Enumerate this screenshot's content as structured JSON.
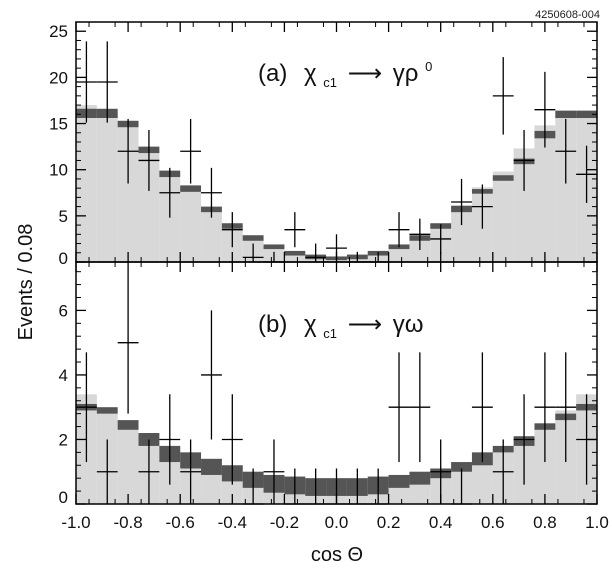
{
  "figure_id": "4250608-004",
  "chart_data": [
    {
      "type": "bar",
      "panel_label": "(a)",
      "process_symbol": "χ",
      "process_subscript": "c1",
      "process_arrow": "⟶",
      "process_final": "γρ",
      "process_final_superscript": "0",
      "xlabel": "cos Θ",
      "ylabel": "Events / 0.08",
      "xlim": [
        -1.0,
        1.0
      ],
      "ylim": [
        0,
        26
      ],
      "y_ticks": [
        0,
        5,
        10,
        15,
        20,
        25
      ],
      "x_ticks": [
        -1.0,
        -0.8,
        -0.6,
        -0.4,
        -0.2,
        0.0,
        0.2,
        0.4,
        0.6,
        0.8,
        1.0
      ],
      "x_tick_labels": [
        "-1.0",
        "-0.8",
        "-0.6",
        "-0.4",
        "-0.2",
        "0.0",
        "0.2",
        "0.4",
        "0.6",
        "0.8",
        "1.0"
      ],
      "bin_edges": [
        -1.0,
        -0.92,
        -0.84,
        -0.76,
        -0.68,
        -0.6,
        -0.52,
        -0.44,
        -0.36,
        -0.28,
        -0.2,
        -0.12,
        -0.04,
        0.04,
        0.12,
        0.2,
        0.28,
        0.36,
        0.44,
        0.52,
        0.6,
        0.68,
        0.76,
        0.84,
        0.92,
        1.0
      ],
      "series": [
        {
          "kind": "light-fill-histogram",
          "color": "#d8d8d8",
          "values": [
            17.0,
            16.2,
            14.8,
            12.3,
            9.8,
            8.1,
            5.9,
            4.0,
            2.8,
            1.9,
            1.2,
            0.8,
            0.6,
            0.8,
            1.2,
            1.9,
            2.8,
            4.0,
            5.9,
            8.1,
            9.8,
            12.3,
            14.8,
            16.2,
            16.0
          ]
        },
        {
          "kind": "dark-band",
          "color": "#555555",
          "low": [
            15.6,
            15.6,
            14.6,
            11.8,
            9.2,
            7.6,
            5.4,
            3.6,
            2.3,
            1.4,
            0.7,
            0.3,
            0.2,
            0.3,
            0.7,
            1.4,
            2.3,
            3.6,
            5.4,
            7.4,
            8.8,
            10.6,
            13.4,
            15.6,
            15.6
          ],
          "high": [
            16.6,
            16.6,
            15.3,
            12.5,
            9.9,
            8.3,
            6.0,
            4.2,
            2.9,
            1.9,
            1.2,
            0.8,
            0.6,
            0.8,
            1.2,
            1.9,
            2.9,
            4.2,
            6.1,
            7.9,
            9.4,
            11.2,
            14.2,
            16.4,
            16.4
          ]
        },
        {
          "kind": "data-points",
          "color": "#000000",
          "x": [
            -0.96,
            -0.88,
            -0.8,
            -0.72,
            -0.64,
            -0.56,
            -0.48,
            -0.4,
            -0.32,
            -0.24,
            -0.16,
            -0.08,
            0.0,
            0.08,
            0.16,
            0.24,
            0.32,
            0.4,
            0.48,
            0.56,
            0.64,
            0.72,
            0.8,
            0.88,
            0.96
          ],
          "y": [
            19.5,
            19.5,
            12.0,
            11.0,
            7.5,
            12.0,
            7.5,
            3.5,
            0.5,
            0.0,
            3.5,
            0.5,
            1.5,
            0.0,
            0.0,
            3.5,
            3.0,
            2.5,
            6.5,
            6.0,
            18.0,
            11.0,
            16.5,
            12.0,
            9.5
          ],
          "yerr_low": [
            4.4,
            4.4,
            3.5,
            3.3,
            2.7,
            3.5,
            2.7,
            1.9,
            0.5,
            0.0,
            1.9,
            0.5,
            1.2,
            0.0,
            0.0,
            1.9,
            1.7,
            1.6,
            2.5,
            2.4,
            4.2,
            3.3,
            4.1,
            3.5,
            3.1
          ],
          "yerr_high": [
            4.4,
            4.4,
            3.5,
            3.3,
            2.7,
            3.5,
            2.7,
            1.9,
            1.5,
            1.1,
            1.9,
            1.5,
            1.5,
            1.1,
            1.1,
            1.9,
            1.7,
            1.6,
            2.5,
            2.4,
            4.2,
            3.3,
            4.1,
            3.5,
            3.1
          ]
        }
      ]
    },
    {
      "type": "bar",
      "panel_label": "(b)",
      "process_symbol": "χ",
      "process_subscript": "c1",
      "process_arrow": "⟶",
      "process_final": "γω",
      "xlabel": "cos Θ",
      "ylabel": "Events / 0.08",
      "xlim": [
        -1.0,
        1.0
      ],
      "ylim": [
        0,
        7.5
      ],
      "y_ticks": [
        0,
        2,
        4,
        6
      ],
      "x_ticks": [
        -1.0,
        -0.8,
        -0.6,
        -0.4,
        -0.2,
        0.0,
        0.2,
        0.4,
        0.6,
        0.8,
        1.0
      ],
      "x_tick_labels": [
        "-1.0",
        "-0.8",
        "-0.6",
        "-0.4",
        "-0.2",
        "0.0",
        "0.2",
        "0.4",
        "0.6",
        "0.8",
        "1.0"
      ],
      "bin_edges": [
        -1.0,
        -0.92,
        -0.84,
        -0.76,
        -0.68,
        -0.6,
        -0.52,
        -0.44,
        -0.36,
        -0.28,
        -0.2,
        -0.12,
        -0.04,
        0.04,
        0.12,
        0.2,
        0.28,
        0.36,
        0.44,
        0.52,
        0.6,
        0.68,
        0.76,
        0.84,
        0.92,
        1.0
      ],
      "series": [
        {
          "kind": "light-fill-histogram",
          "color": "#d8d8d8",
          "values": [
            3.4,
            2.9,
            2.5,
            2.2,
            1.8,
            1.6,
            1.4,
            1.2,
            1.0,
            0.9,
            0.85,
            0.8,
            0.8,
            0.8,
            0.85,
            0.9,
            1.0,
            1.1,
            1.3,
            1.6,
            1.8,
            2.1,
            2.5,
            2.9,
            3.4
          ]
        },
        {
          "kind": "dark-band",
          "color": "#555555",
          "low": [
            2.9,
            2.8,
            2.3,
            1.8,
            1.3,
            1.1,
            0.9,
            0.7,
            0.5,
            0.35,
            0.3,
            0.25,
            0.25,
            0.25,
            0.3,
            0.5,
            0.6,
            0.8,
            1.0,
            1.2,
            1.6,
            1.8,
            2.3,
            2.6,
            2.9
          ],
          "high": [
            3.1,
            3.0,
            2.6,
            2.2,
            1.8,
            1.6,
            1.4,
            1.2,
            1.0,
            0.9,
            0.85,
            0.8,
            0.8,
            0.8,
            0.85,
            0.9,
            1.0,
            1.1,
            1.3,
            1.6,
            1.8,
            2.1,
            2.5,
            2.8,
            3.1
          ]
        },
        {
          "kind": "data-points",
          "color": "#000000",
          "x": [
            -0.96,
            -0.88,
            -0.8,
            -0.72,
            -0.64,
            -0.56,
            -0.48,
            -0.4,
            -0.32,
            -0.24,
            -0.16,
            -0.08,
            0.0,
            0.08,
            0.16,
            0.24,
            0.32,
            0.4,
            0.48,
            0.56,
            0.64,
            0.72,
            0.8,
            0.88,
            0.96
          ],
          "y": [
            3.0,
            1.0,
            5.0,
            1.0,
            2.0,
            1.0,
            4.0,
            2.0,
            0.0,
            1.0,
            0.0,
            0.0,
            0.0,
            0.0,
            0.0,
            3.0,
            3.0,
            1.0,
            0.0,
            3.0,
            1.0,
            2.0,
            3.0,
            3.0,
            2.0
          ],
          "yerr_low": [
            1.7,
            1.0,
            2.2,
            1.0,
            1.4,
            1.0,
            2.0,
            1.4,
            0.0,
            1.0,
            0.0,
            0.0,
            0.0,
            0.0,
            0.0,
            1.7,
            1.7,
            1.0,
            0.0,
            1.7,
            1.0,
            1.4,
            1.7,
            1.7,
            1.4
          ],
          "yerr_high": [
            1.7,
            1.0,
            2.2,
            1.0,
            1.4,
            1.0,
            2.0,
            1.4,
            1.1,
            1.0,
            1.1,
            1.1,
            1.1,
            1.1,
            1.1,
            1.7,
            1.7,
            1.0,
            1.1,
            1.7,
            1.0,
            1.4,
            1.7,
            1.7,
            1.4
          ]
        }
      ]
    }
  ]
}
